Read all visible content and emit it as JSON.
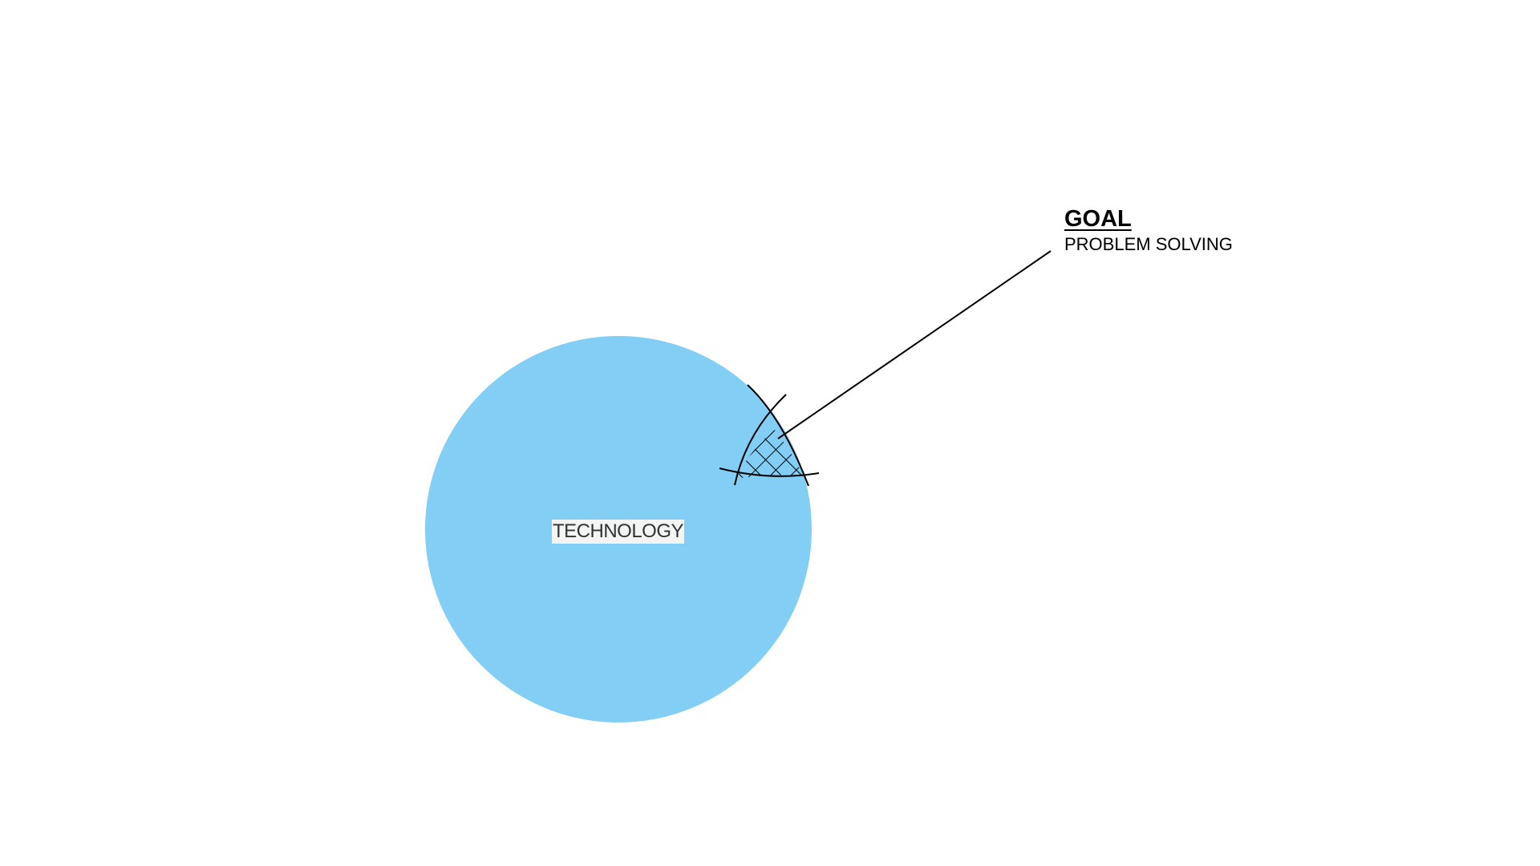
{
  "diagram": {
    "main_circle": {
      "label": "TECHNOLOGY",
      "fill_color": "#82CEF4"
    },
    "goal": {
      "title": "GOAL",
      "subtitle": "PROBLEM SOLVING"
    },
    "colors": {
      "line": "#000000",
      "label_background": "#f2f5f4"
    }
  }
}
